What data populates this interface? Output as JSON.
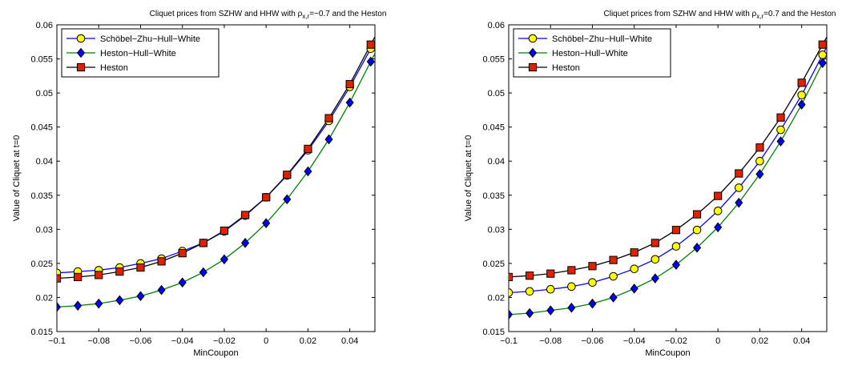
{
  "chart_data": [
    {
      "type": "line",
      "title_prefix": "Cliquet prices from SZHW and HHW with ρ",
      "title_subscript": "x,r",
      "title_suffix": "=−0.7 and the Heston",
      "xlabel": "MinCoupon",
      "ylabel": "Value of Cliquet at t=0",
      "xlim": [
        -0.1,
        0.052
      ],
      "ylim": [
        0.015,
        0.06
      ],
      "grid": false,
      "legend_position": "top-left",
      "x_tick_labels": [
        "−0.1",
        "−0.08",
        "−0.06",
        "−0.04",
        "−0.02",
        "0",
        "0.02",
        "0.04"
      ],
      "y_tick_labels": [
        "0.015",
        "0.02",
        "0.025",
        "0.03",
        "0.035",
        "0.04",
        "0.045",
        "0.05",
        "0.055",
        "0.06"
      ],
      "x": [
        -0.1,
        -0.09,
        -0.08,
        -0.07,
        -0.06,
        -0.05,
        -0.04,
        -0.03,
        -0.02,
        -0.01,
        0,
        0.01,
        0.02,
        0.03,
        0.04,
        0.05
      ],
      "series": [
        {
          "name": "Schöbel−Zhu−Hull−White",
          "color": "#0000ff",
          "marker": "circle",
          "marker_fill": "#ffff00",
          "values": [
            0.0236,
            0.0238,
            0.024,
            0.0244,
            0.025,
            0.0257,
            0.0268,
            0.028,
            0.0297,
            0.032,
            0.0347,
            0.0379,
            0.0416,
            0.0459,
            0.0509,
            0.0565
          ]
        },
        {
          "name": "Heston−Hull−White",
          "color": "#008000",
          "marker": "diamond",
          "marker_fill": "#0000ff",
          "values": [
            0.0186,
            0.0188,
            0.0191,
            0.0196,
            0.0202,
            0.0211,
            0.0222,
            0.0237,
            0.0256,
            0.028,
            0.0309,
            0.0344,
            0.0385,
            0.0432,
            0.0486,
            0.0546
          ]
        },
        {
          "name": "Heston",
          "color": "#000000",
          "marker": "square",
          "marker_fill": "#dd2200",
          "values": [
            0.0228,
            0.023,
            0.0233,
            0.0238,
            0.0244,
            0.0253,
            0.0265,
            0.028,
            0.0298,
            0.0321,
            0.0347,
            0.038,
            0.0418,
            0.0463,
            0.0513,
            0.0571
          ]
        }
      ]
    },
    {
      "type": "line",
      "title_prefix": "Cliquet prices from SZHW and HHW with ρ",
      "title_subscript": "x,r",
      "title_suffix": "=0.7 and the Heston",
      "xlabel": "MinCoupon",
      "ylabel": "Value of Cliquet at t=0",
      "xlim": [
        -0.1,
        0.052
      ],
      "ylim": [
        0.015,
        0.06
      ],
      "grid": false,
      "legend_position": "top-left",
      "x_tick_labels": [
        "−0.1",
        "−0.08",
        "−0.06",
        "−0.04",
        "−0.02",
        "0",
        "0.02",
        "0.04"
      ],
      "y_tick_labels": [
        "0.015",
        "0.02",
        "0.025",
        "0.03",
        "0.035",
        "0.04",
        "0.045",
        "0.05",
        "0.055",
        "0.06"
      ],
      "x": [
        -0.1,
        -0.09,
        -0.08,
        -0.07,
        -0.06,
        -0.05,
        -0.04,
        -0.03,
        -0.02,
        -0.01,
        0,
        0.01,
        0.02,
        0.03,
        0.04,
        0.05
      ],
      "series": [
        {
          "name": "Schöbel−Zhu−Hull−White",
          "color": "#0000ff",
          "marker": "circle",
          "marker_fill": "#ffff00",
          "values": [
            0.0207,
            0.0209,
            0.0212,
            0.0216,
            0.0222,
            0.0231,
            0.0242,
            0.0256,
            0.0275,
            0.0299,
            0.0327,
            0.0361,
            0.04,
            0.0446,
            0.0497,
            0.0556
          ]
        },
        {
          "name": "Heston−Hull−White",
          "color": "#008000",
          "marker": "diamond",
          "marker_fill": "#0000ff",
          "values": [
            0.0175,
            0.0177,
            0.0181,
            0.0185,
            0.0191,
            0.02,
            0.0213,
            0.0228,
            0.0248,
            0.0273,
            0.0303,
            0.0339,
            0.0381,
            0.0429,
            0.0483,
            0.0544
          ]
        },
        {
          "name": "Heston",
          "color": "#000000",
          "marker": "square",
          "marker_fill": "#dd2200",
          "values": [
            0.023,
            0.0232,
            0.0235,
            0.024,
            0.0246,
            0.0255,
            0.0266,
            0.028,
            0.0299,
            0.0322,
            0.0349,
            0.0382,
            0.042,
            0.0464,
            0.0515,
            0.0571
          ]
        }
      ]
    }
  ]
}
